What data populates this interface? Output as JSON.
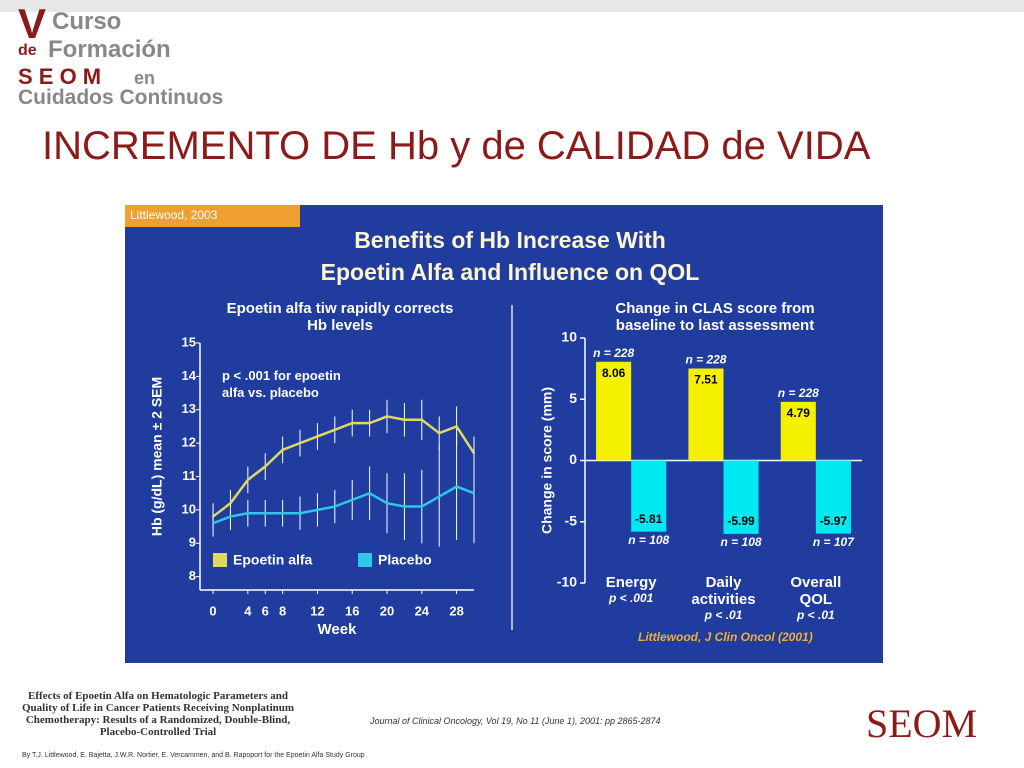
{
  "header": {
    "logo": [
      "V",
      "Curso",
      "de",
      "Formación",
      "S E O M",
      "en",
      "Cuidados Continuos"
    ],
    "title": "INCREMENTO DE Hb y de CALIDAD de VIDA"
  },
  "panel": {
    "tag": "Littlewood, 2003",
    "title": [
      "Benefits of Hb Increase With",
      "Epoetin Alfa and Influence on QOL"
    ]
  },
  "chart_data": [
    {
      "type": "line",
      "title": [
        "Epoetin alfa tiw rapidly corrects",
        "Hb levels"
      ],
      "annotation": [
        "p < .001 for epoetin",
        "alfa vs. placebo"
      ],
      "x_label": "Week",
      "y_label": "Hb (g/dL) mean ± 2 SEM",
      "x": [
        0,
        2,
        4,
        6,
        8,
        10,
        12,
        14,
        16,
        18,
        20,
        22,
        24,
        26,
        28,
        30
      ],
      "series": [
        {
          "name": "Epoetin alfa",
          "color": "#e0d860",
          "values": [
            9.8,
            10.2,
            10.9,
            11.3,
            11.8,
            12.0,
            12.2,
            12.4,
            12.6,
            12.6,
            12.8,
            12.7,
            12.7,
            12.3,
            12.5,
            11.7
          ],
          "errors": [
            0.4,
            0.4,
            0.4,
            0.4,
            0.4,
            0.4,
            0.4,
            0.4,
            0.4,
            0.4,
            0.5,
            0.5,
            0.6,
            0.5,
            0.6,
            0.5
          ]
        },
        {
          "name": "Placebo",
          "color": "#30c8e8",
          "values": [
            9.6,
            9.8,
            9.9,
            9.9,
            9.9,
            9.9,
            10.0,
            10.1,
            10.3,
            10.5,
            10.2,
            10.1,
            10.1,
            10.4,
            10.7,
            10.5
          ],
          "errors": [
            0.4,
            0.4,
            0.4,
            0.4,
            0.4,
            0.5,
            0.5,
            0.5,
            0.6,
            0.8,
            0.9,
            1.0,
            1.1,
            1.5,
            1.6,
            1.5
          ]
        }
      ],
      "xlim": [
        -1.5,
        30
      ],
      "xticks": [
        0,
        4,
        6,
        8,
        12,
        16,
        20,
        24,
        28
      ],
      "ylim": [
        7.6,
        15
      ],
      "yticks": [
        8,
        9,
        10,
        11,
        12,
        13,
        14,
        15
      ]
    },
    {
      "type": "bar",
      "title": [
        "Change in CLAS score from",
        "baseline to last assessment"
      ],
      "y_label": "Change in score (mm)",
      "categories": [
        "Energy",
        "Daily activities",
        "Overall QOL"
      ],
      "p_values": [
        "p < .001",
        "p < .01",
        "p < .01"
      ],
      "series": [
        {
          "name": "Epoetin alfa",
          "color": "#f5f000",
          "values": [
            8.06,
            7.51,
            4.79
          ],
          "n_labels": [
            "n = 228",
            "n = 228",
            "n = 228"
          ]
        },
        {
          "name": "Placebo",
          "color": "#00e8f0",
          "values": [
            -5.81,
            -5.99,
            -5.97
          ],
          "n_labels": [
            "n = 108",
            "n = 108",
            "n = 107"
          ]
        }
      ],
      "ylim": [
        -10,
        10
      ],
      "yticks": [
        -10,
        -5,
        0,
        5,
        10
      ],
      "source": "Littlewood, J Clin Oncol (2001)"
    }
  ],
  "footer": {
    "article": [
      "Effects of Epoetin Alfa on Hematologic Parameters and",
      "Quality of Life in Cancer Patients Receiving Nonplatinum",
      "Chemotherapy: Results of a Randomized, Double-Blind,",
      "Placebo-Controlled Trial"
    ],
    "journal": "Journal of Clinical Oncology, Vol 19, No 11 (June 1), 2001: pp 2865-2874",
    "authors": "By T.J. Littlewood, E. Bajetta, J.W.R. Nortier, E. Vercammen, and B. Rapoport for the Epoetin Alfa Study Group",
    "brand": "SEOM"
  }
}
